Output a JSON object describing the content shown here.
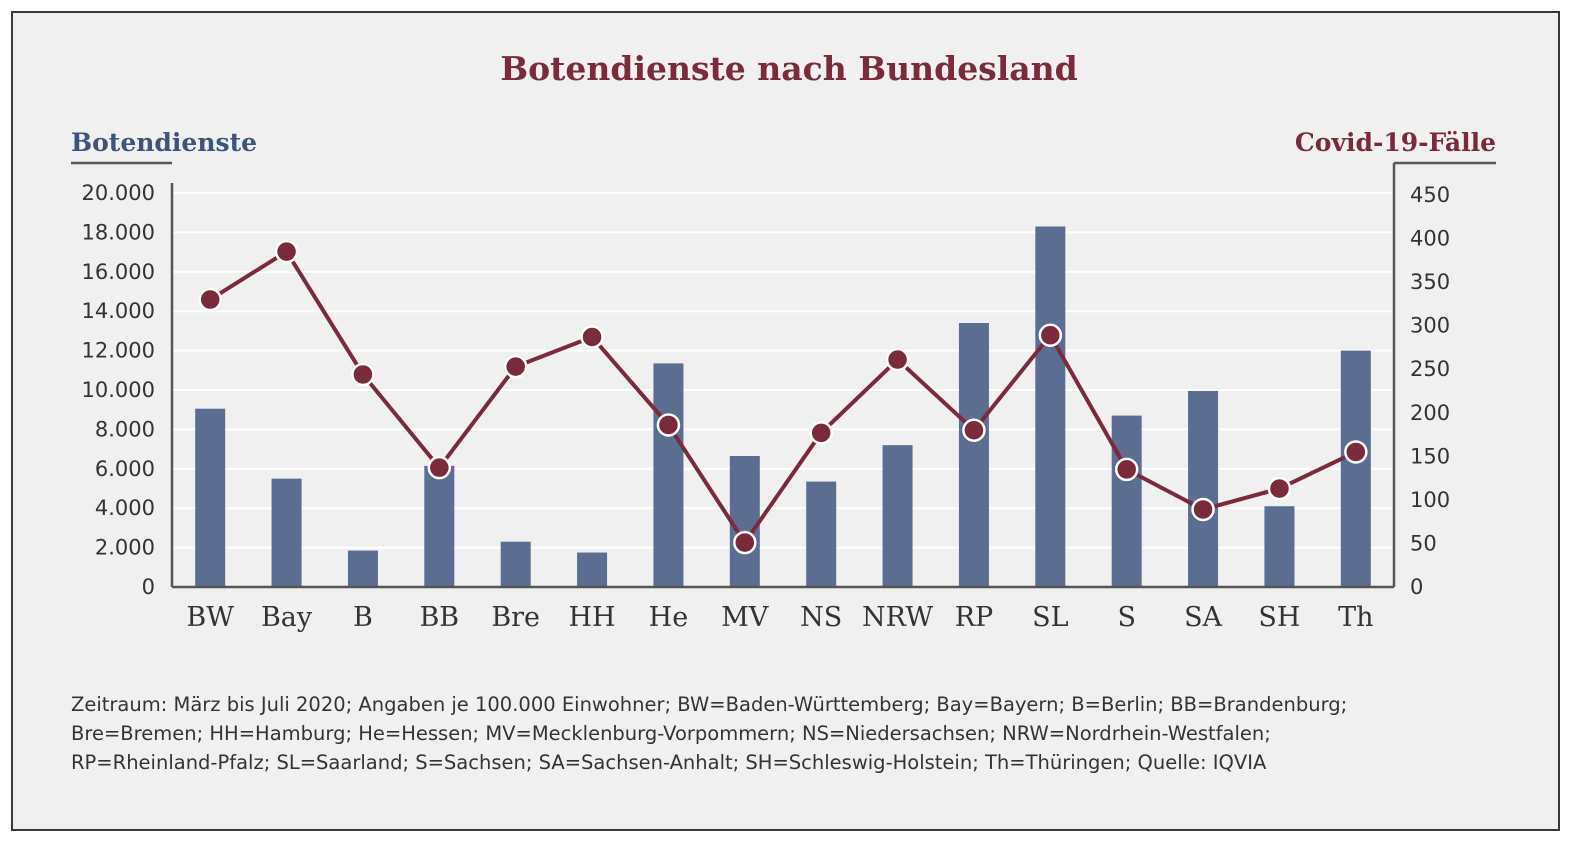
{
  "chart_data": {
    "type": "bar+line",
    "title": "Botendienste nach Bundesland",
    "categories": [
      "BW",
      "Bay",
      "B",
      "BB",
      "Bre",
      "HH",
      "He",
      "MV",
      "NS",
      "NRW",
      "RP",
      "SL",
      "S",
      "SA",
      "SH",
      "Th"
    ],
    "left_axis": {
      "label": "Botendienste",
      "range": [
        0,
        20000
      ],
      "ticks": [
        0,
        2000,
        4000,
        6000,
        8000,
        10000,
        12000,
        14000,
        16000,
        18000,
        20000
      ],
      "tick_labels": [
        "0",
        "2.000",
        "4.000",
        "6.000",
        "8.000",
        "10.000",
        "12.000",
        "14.000",
        "16.000",
        "18.000",
        "20.000"
      ]
    },
    "right_axis": {
      "label": "Covid-19-Fälle",
      "range": [
        0,
        450
      ],
      "ticks": [
        0,
        50,
        100,
        150,
        200,
        250,
        300,
        350,
        400,
        450
      ],
      "tick_labels": [
        "0",
        "50",
        "100",
        "150",
        "200",
        "250",
        "300",
        "350",
        "400",
        "450"
      ]
    },
    "series": [
      {
        "kind": "bar",
        "axis": "left",
        "color": "#5b6d91",
        "values": [
          9050,
          5500,
          1850,
          6150,
          2300,
          1750,
          11350,
          6650,
          5350,
          7200,
          13400,
          18300,
          8700,
          9950,
          4100,
          12000
        ]
      },
      {
        "kind": "line",
        "axis": "right",
        "color": "#7a2a3a",
        "values": [
          330,
          385,
          244,
          137,
          253,
          287,
          186,
          51,
          177,
          261,
          180,
          289,
          135,
          89,
          113,
          155
        ]
      }
    ],
    "grid": "horizontal",
    "legend": "none"
  },
  "footnote_lines": [
    "Zeitraum: März bis Juli 2020; Angaben je 100.000 Einwohner; BW=Baden-Württemberg; Bay=Bayern; B=Berlin; BB=Brandenburg;",
    "Bre=Bremen; HH=Hamburg; He=Hessen; MV=Mecklenburg-Vorpommern; NS=Niedersachsen; NRW=Nordrhein-Westfalen;",
    "RP=Rheinland-Pfalz; SL=Saarland; S=Sachsen; SA=Sachsen-Anhalt; SH=Schleswig-Holstein; Th=Thüringen; Quelle: IQVIA"
  ]
}
